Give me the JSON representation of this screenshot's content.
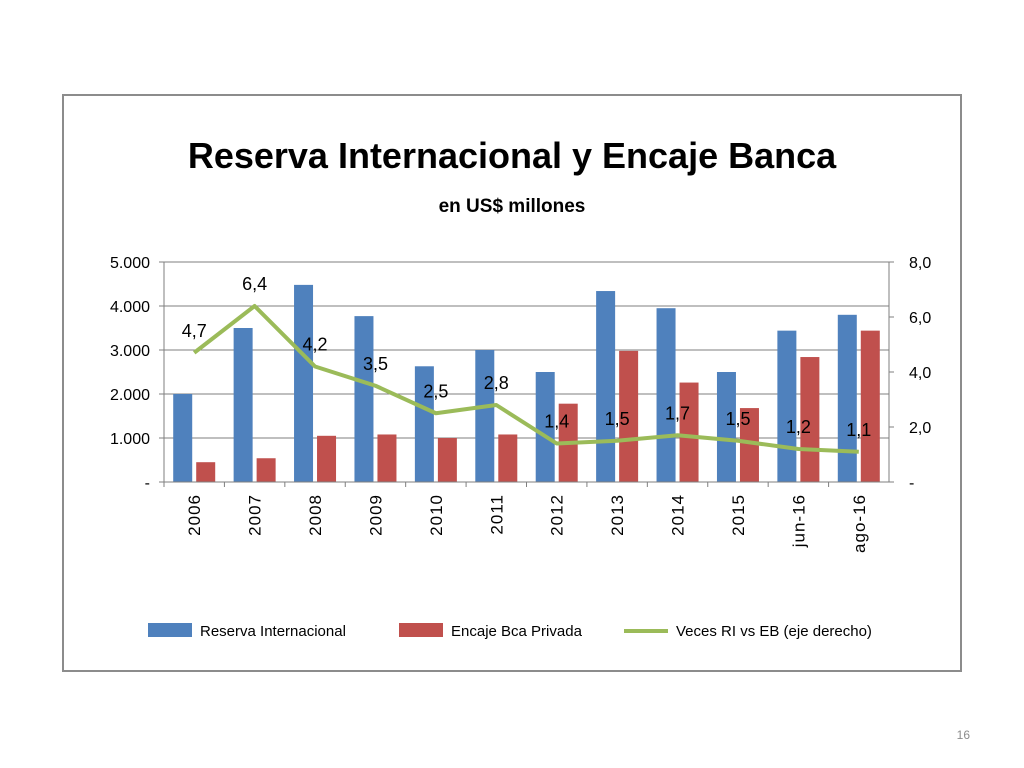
{
  "page": {
    "number": "16"
  },
  "chart_data": {
    "type": "bar",
    "title": "Reserva Internacional y Encaje Banca",
    "subtitle": "en US$ millones",
    "categories": [
      "2006",
      "2007",
      "2008",
      "2009",
      "2010",
      "2011",
      "2012",
      "2013",
      "2014",
      "2015",
      "jun-16",
      "ago-16"
    ],
    "series": [
      {
        "name": "Reserva Internacional",
        "type": "bar",
        "axis": "left",
        "color": "#4f81bd",
        "values": [
          2000,
          3500,
          4480,
          3770,
          2630,
          3000,
          2500,
          4340,
          3950,
          2500,
          3440,
          3800
        ]
      },
      {
        "name": "Encaje Bca Privada",
        "type": "bar",
        "axis": "left",
        "color": "#c0504d",
        "values": [
          450,
          540,
          1050,
          1080,
          1000,
          1080,
          1780,
          2980,
          2260,
          1680,
          2840,
          3440
        ]
      },
      {
        "name": "Veces RI vs EB (eje derecho)",
        "type": "line",
        "axis": "right",
        "color": "#9bbb59",
        "values": [
          4.7,
          6.4,
          4.2,
          3.5,
          2.5,
          2.8,
          1.4,
          1.5,
          1.7,
          1.5,
          1.2,
          1.1
        ],
        "labels": [
          "4,7",
          "6,4",
          "4,2",
          "3,5",
          "2,5",
          "2,8",
          "1,4",
          "1,5",
          "1,7",
          "1,5",
          "1,2",
          "1,1"
        ]
      }
    ],
    "left_axis": {
      "range": [
        0,
        5000
      ],
      "ticks": [
        0,
        1000,
        2000,
        3000,
        4000,
        5000
      ],
      "tick_labels": [
        "-",
        "1.000",
        "2.000",
        "3.000",
        "4.000",
        "5.000"
      ]
    },
    "right_axis": {
      "range": [
        0,
        8
      ],
      "ticks": [
        0,
        2,
        4,
        6,
        8
      ],
      "tick_labels": [
        "-",
        "2,0",
        "4,0",
        "6,0",
        "8,0"
      ]
    },
    "grid": true,
    "legend_position": "bottom"
  }
}
